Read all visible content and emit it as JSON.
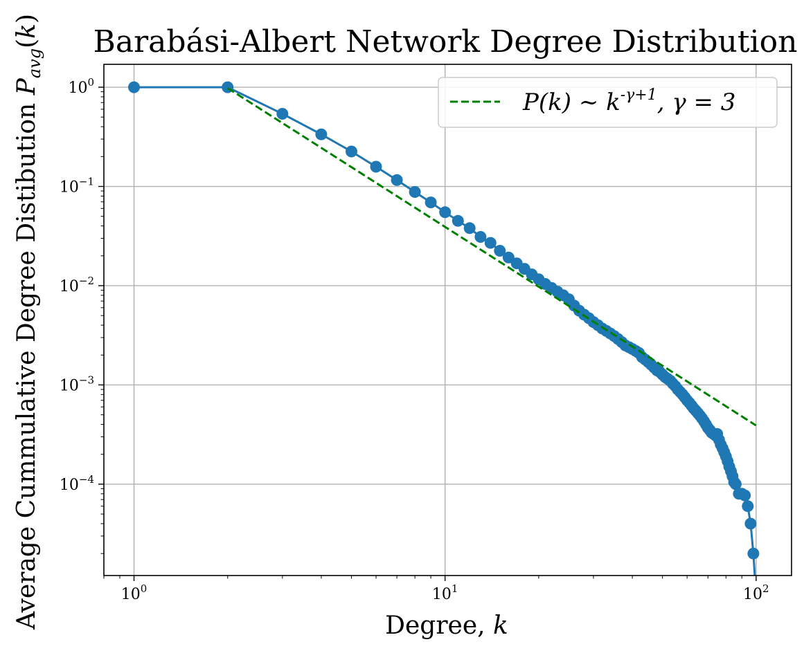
{
  "chart_data": {
    "type": "line",
    "title": "Barabási-Albert Network Degree Distribution",
    "xlabel": "Degree, k",
    "ylabel": "Average Cummulative Degree Distibution P_avg(k)",
    "xscale": "log",
    "yscale": "log",
    "xlim": [
      0.8,
      130
    ],
    "ylim": [
      1.2e-05,
      1.7
    ],
    "x_ticks": [
      {
        "value": 1,
        "label": "10^0"
      },
      {
        "value": 10,
        "label": "10^1"
      },
      {
        "value": 100,
        "label": "10^2"
      }
    ],
    "y_ticks": [
      {
        "value": 1,
        "label": "10^0"
      },
      {
        "value": 0.1,
        "label": "10^-1"
      },
      {
        "value": 0.01,
        "label": "10^-2"
      },
      {
        "value": 0.001,
        "label": "10^-3"
      },
      {
        "value": 0.0001,
        "label": "10^-4"
      }
    ],
    "grid": true,
    "legend_position": "top-right",
    "series": [
      {
        "kind": "line-markers",
        "color": "#1f77b4",
        "x": [
          1,
          2,
          3,
          4,
          5,
          6,
          7,
          8,
          9,
          10,
          11,
          12,
          13,
          14,
          15,
          16,
          17,
          18,
          19,
          20,
          21,
          22,
          23,
          24,
          25,
          26,
          27,
          28,
          29,
          30,
          31,
          32,
          33,
          34,
          35,
          36,
          37,
          38,
          39,
          40,
          41,
          42,
          43,
          44,
          45,
          46,
          47,
          48,
          49,
          50,
          51,
          52,
          53,
          54,
          55,
          56,
          57,
          58,
          59,
          60,
          61,
          62,
          63,
          64,
          65,
          66,
          67,
          68,
          69,
          70,
          71,
          72,
          73,
          74,
          75,
          76,
          77,
          78,
          79,
          80,
          81,
          82,
          83,
          84,
          85,
          86,
          88,
          90,
          92,
          94,
          96,
          98,
          99
        ],
        "y": [
          1.0,
          1.0,
          0.54,
          0.335,
          0.225,
          0.158,
          0.116,
          0.088,
          0.069,
          0.055,
          0.045,
          0.038,
          0.031,
          0.027,
          0.0225,
          0.0192,
          0.0168,
          0.0148,
          0.013,
          0.0116,
          0.0104,
          0.0095,
          0.0087,
          0.008,
          0.0073,
          0.0063,
          0.0056,
          0.0051,
          0.0047,
          0.0043,
          0.004,
          0.0037,
          0.0035,
          0.0033,
          0.0031,
          0.0029,
          0.0027,
          0.0025,
          0.0024,
          0.0023,
          0.0022,
          0.0021,
          0.0019,
          0.0018,
          0.0017,
          0.0016,
          0.0015,
          0.0014,
          0.00135,
          0.00127,
          0.0012,
          0.00115,
          0.0011,
          0.00103,
          0.00097,
          0.0009,
          0.00085,
          0.0008,
          0.00075,
          0.0007,
          0.00066,
          0.00062,
          0.00058,
          0.00055,
          0.00052,
          0.00049,
          0.00046,
          0.00043,
          0.0004,
          0.00037,
          0.00035,
          0.00033,
          0.00032,
          0.00031,
          0.00032,
          0.00028,
          0.00025,
          0.00023,
          0.00021,
          0.00019,
          0.00017,
          0.00015,
          0.000135,
          0.00012,
          0.000105,
          0.0001,
          8e-05,
          8e-05,
          7.7e-05,
          6e-05,
          4e-05,
          2e-05,
          5e-06
        ]
      },
      {
        "name": "P(k) ~ k^(-γ+1), γ = 3",
        "kind": "dashed-line",
        "color": "#008000",
        "x": [
          2,
          100
        ],
        "y": [
          0.98,
          0.00039
        ]
      }
    ]
  }
}
